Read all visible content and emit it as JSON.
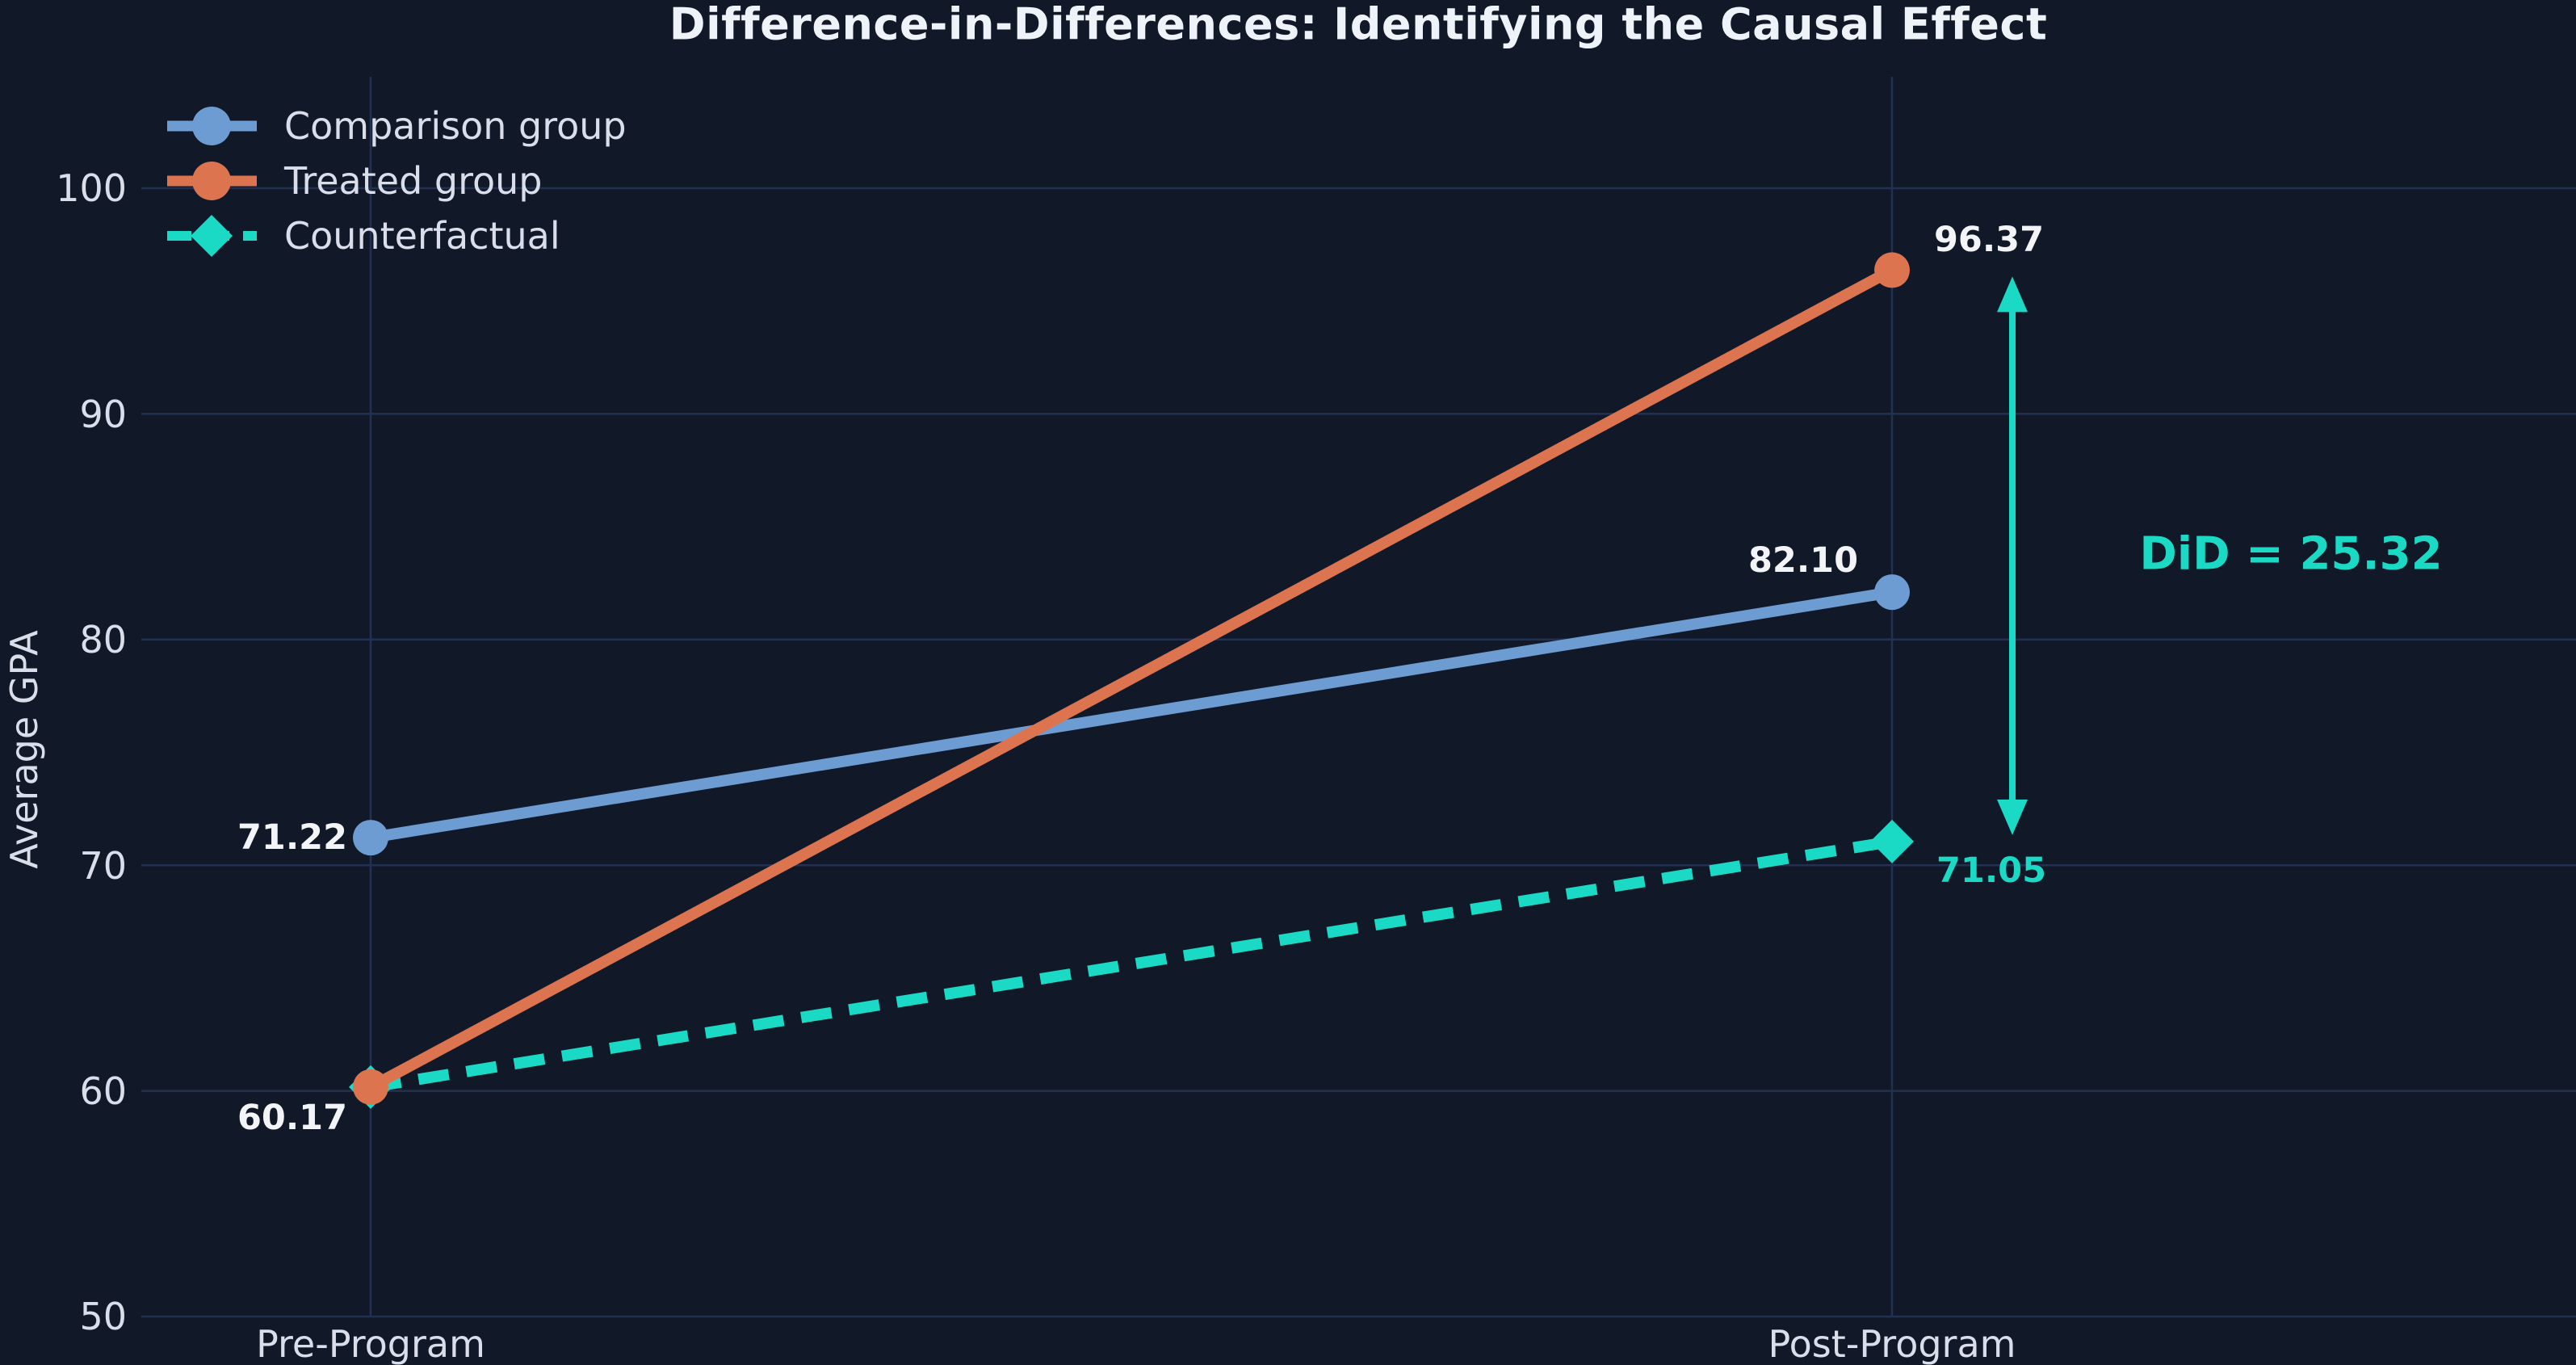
{
  "chart_data": {
    "type": "line",
    "title": "Difference-in-Differences: Identifying the Causal Effect",
    "ylabel": "Average GPA",
    "xlabel": "",
    "categories": [
      "Pre-Program",
      "Post-Program"
    ],
    "ytick_labels": [
      "100",
      "90",
      "80",
      "70",
      "60",
      "50"
    ],
    "yticks": [
      100,
      90,
      80,
      70,
      60,
      50
    ],
    "ylim": [
      50,
      105
    ],
    "grid": true,
    "legend_position": "upper-left",
    "background_color": "#111827",
    "gridline_color": "#223052",
    "text_color": "#d9deea",
    "series": [
      {
        "name": "Comparison group",
        "values": [
          71.22,
          82.1
        ],
        "color": "#6d9cd2",
        "style": "solid",
        "marker": "circle"
      },
      {
        "name": "Treated group",
        "values": [
          60.17,
          96.37
        ],
        "color": "#dc7450",
        "style": "solid",
        "marker": "circle"
      },
      {
        "name": "Counterfactual",
        "values": [
          60.17,
          71.05
        ],
        "color": "#1bdac5",
        "style": "dashed",
        "marker": "diamond"
      }
    ],
    "point_labels": {
      "comparison_pre": "71.22",
      "comparison_post": "82.10",
      "treated_pre": "60.17",
      "treated_post": "96.37",
      "counterfactual_post": "71.05"
    },
    "annotation": {
      "text": "DiD = 25.32",
      "color": "#1bdac5",
      "arrow_between": [
        96.37,
        71.05
      ]
    }
  }
}
